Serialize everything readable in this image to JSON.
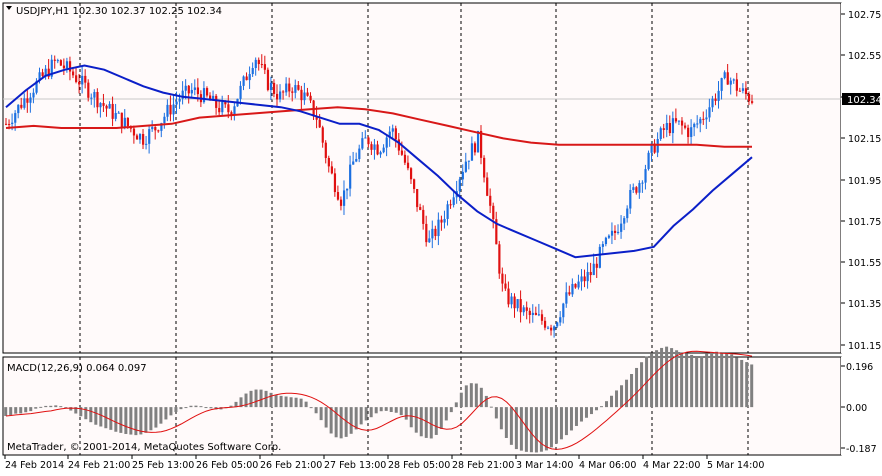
{
  "main_chart": {
    "header": "USDJPY,H1  102.30 102.37 102.25 102.34",
    "current_price_label": "102.34",
    "y_ticks": [
      "102.75",
      "102.55",
      "102.35",
      "102.15",
      "101.95",
      "101.75",
      "101.55",
      "101.35",
      "101.15"
    ],
    "colors": {
      "bull": "#1c6fe0",
      "bear": "#e01010",
      "ma_blue": "#0b1fc8",
      "ma_red": "#d81818",
      "background": "#fffafa",
      "grid": "#000000"
    }
  },
  "macd_panel": {
    "header": "MACD(12,26,9) 0.064 0.097",
    "y_ticks": [
      "0.196",
      "0.00",
      "-0.187"
    ],
    "copyright": "MetaTrader, © 2001-2014, MetaQuotes Software Corp.",
    "colors": {
      "histogram": "#808080",
      "signal": "#e01010"
    }
  },
  "time_axis": {
    "labels": [
      "24 Feb 2014",
      "24 Feb 21:00",
      "25 Feb 13:00",
      "26 Feb 05:00",
      "26 Feb 21:00",
      "27 Feb 13:00",
      "28 Feb 05:00",
      "28 Feb 21:00",
      "3 Mar 14:00",
      "4 Mar 06:00",
      "4 Mar 22:00",
      "5 Mar 14:00"
    ]
  },
  "chart_data": {
    "type": "candlestick",
    "symbol": "USDJPY",
    "timeframe": "H1",
    "ylim": [
      101.12,
      102.8
    ],
    "x_categories": [
      "24 Feb 2014",
      "24 Feb 21:00",
      "25 Feb 13:00",
      "26 Feb 05:00",
      "26 Feb 21:00",
      "27 Feb 13:00",
      "28 Feb 05:00",
      "28 Feb 21:00",
      "3 Mar 14:00",
      "4 Mar 06:00",
      "4 Mar 22:00",
      "5 Mar 14:00"
    ],
    "close_path": [
      102.22,
      102.3,
      102.38,
      102.45,
      102.52,
      102.48,
      102.42,
      102.36,
      102.3,
      102.25,
      102.2,
      102.15,
      102.2,
      102.28,
      102.35,
      102.38,
      102.35,
      102.3,
      102.28,
      102.4,
      102.55,
      102.42,
      102.35,
      102.4,
      102.35,
      102.25,
      102.0,
      101.85,
      102.05,
      102.15,
      102.1,
      102.2,
      102.05,
      101.85,
      101.65,
      101.75,
      101.9,
      102.05,
      102.15,
      101.8,
      101.4,
      101.35,
      101.3,
      101.28,
      101.25,
      101.38,
      101.45,
      101.5,
      101.62,
      101.7,
      101.85,
      101.95,
      102.1,
      102.2,
      102.22,
      102.18,
      102.25,
      102.35,
      102.45,
      102.38,
      102.34
    ],
    "ma_blue": [
      102.3,
      102.38,
      102.45,
      102.48,
      102.5,
      102.48,
      102.44,
      102.4,
      102.37,
      102.35,
      102.34,
      102.33,
      102.32,
      102.31,
      102.3,
      102.28,
      102.25,
      102.22,
      102.22,
      102.19,
      102.13,
      102.05,
      101.97,
      101.88,
      101.8,
      101.74,
      101.7,
      101.66,
      101.62,
      101.58,
      101.59,
      101.6,
      101.61,
      101.63,
      101.73,
      101.81,
      101.9,
      101.98,
      102.06
    ],
    "ma_red": [
      102.2,
      102.21,
      102.2,
      102.2,
      102.2,
      102.21,
      102.22,
      102.25,
      102.26,
      102.27,
      102.28,
      102.29,
      102.3,
      102.29,
      102.27,
      102.24,
      102.21,
      102.18,
      102.15,
      102.13,
      102.12,
      102.12,
      102.12,
      102.12,
      102.12,
      102.12,
      102.11,
      102.11
    ],
    "macd": {
      "ylim": [
        -0.2,
        0.21
      ]
    }
  }
}
